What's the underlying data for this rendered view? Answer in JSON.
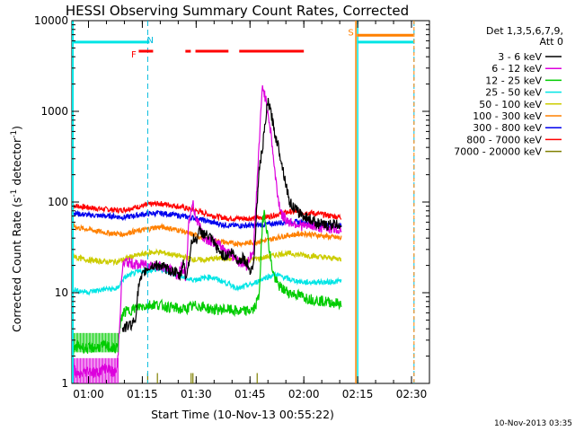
{
  "chart_data": {
    "type": "line",
    "title": "HESSI Observing Summary Count Rates, Corrected",
    "xlabel": "Start Time (10-Nov-13 00:55:22)",
    "ylabel_main": "Corrected Count Rate (s",
    "ylabel_sup1": "-1",
    "ylabel_mid": " detector",
    "ylabel_sup2": "-1",
    "ylabel_end": ")",
    "y_scale": "log",
    "ylim": [
      1,
      10000
    ],
    "xlim_minutes": [
      55.37,
      155.0
    ],
    "x_ticks": [
      {
        "m": 60,
        "label": "01:00"
      },
      {
        "m": 75,
        "label": "01:15"
      },
      {
        "m": 90,
        "label": "01:30"
      },
      {
        "m": 105,
        "label": "01:45"
      },
      {
        "m": 120,
        "label": "02:00"
      },
      {
        "m": 135,
        "label": "02:15"
      },
      {
        "m": 150,
        "label": "02:30"
      }
    ],
    "y_ticks": [
      {
        "v": 1,
        "label": "1"
      },
      {
        "v": 10,
        "label": "10"
      },
      {
        "v": 100,
        "label": "100"
      },
      {
        "v": 1000,
        "label": "1000"
      },
      {
        "v": 10000,
        "label": "10000"
      }
    ],
    "legend_header": [
      "Det 1,3,5,6,7,9,",
      "Att 0"
    ],
    "legend_placement": "right",
    "series": [
      {
        "name": "3 - 6 keV",
        "color": "#000000",
        "x": [
          69.5,
          70.5,
          72,
          73,
          74,
          75,
          76,
          78,
          80,
          82,
          84,
          85.5,
          86,
          86.5,
          87,
          88,
          88.5,
          89,
          90,
          91,
          92,
          94,
          96,
          98,
          100,
          102,
          103,
          105,
          106,
          107.5,
          108.5,
          110,
          111,
          112,
          113,
          114,
          115,
          116,
          118,
          120,
          122,
          124,
          126,
          128,
          129.5,
          130.5
        ],
        "y": [
          4,
          4.2,
          4.5,
          5,
          12,
          15,
          18,
          20,
          20,
          18,
          17,
          15,
          18,
          24,
          14,
          22,
          30,
          40,
          38,
          48,
          45,
          40,
          30,
          25,
          28,
          22,
          25,
          18,
          20,
          220,
          400,
          1300,
          900,
          550,
          400,
          250,
          160,
          100,
          80,
          70,
          64,
          58,
          55,
          57,
          56,
          58
        ]
      },
      {
        "name": "6 - 12 keV",
        "color": "#dd00dd",
        "x": [
          55.8,
          57,
          60,
          62,
          65,
          67,
          68,
          69.5,
          70.5,
          72,
          74,
          76,
          78,
          80,
          82,
          84,
          85,
          86,
          87,
          88,
          89,
          90,
          91,
          92,
          94,
          96,
          98,
          100,
          102,
          104,
          106,
          107.5,
          108.5,
          110,
          111,
          112,
          113,
          114,
          115,
          116,
          118,
          120,
          122,
          124,
          126,
          128,
          130.5
        ],
        "y": [
          1.5,
          1.2,
          1.4,
          1.3,
          1.5,
          1.3,
          1.4,
          20,
          22,
          21,
          20,
          21,
          20,
          20,
          18,
          17,
          15,
          20,
          14,
          60,
          100,
          65,
          55,
          40,
          38,
          34,
          30,
          26,
          22,
          20,
          30,
          400,
          2000,
          1000,
          500,
          200,
          100,
          70,
          65,
          60,
          58,
          54,
          55,
          53,
          52,
          51,
          50
        ]
      },
      {
        "name": "12 - 25 keV",
        "color": "#00cc00",
        "x": [
          55.8,
          57,
          60,
          62,
          65,
          67,
          68,
          69.5,
          70.5,
          72,
          74,
          76,
          78,
          80,
          82,
          84,
          86,
          88,
          90,
          92,
          94,
          96,
          98,
          100,
          102,
          104,
          106,
          107.5,
          108.5,
          109,
          110,
          111,
          112,
          113,
          114,
          116,
          118,
          120,
          122,
          124,
          126,
          128,
          130.5
        ],
        "y": [
          2.3,
          2.6,
          2.4,
          2.5,
          2.6,
          2.4,
          2.5,
          6,
          6.2,
          6.5,
          7,
          7.2,
          7.5,
          7.3,
          7,
          6.8,
          6.5,
          6.8,
          7.2,
          7,
          6.6,
          6.5,
          6.6,
          6.4,
          6.2,
          6.3,
          6.5,
          9,
          60,
          80,
          40,
          20,
          14,
          12,
          11,
          10,
          9.5,
          9,
          8.5,
          8.2,
          8,
          7.8,
          7.5
        ]
      },
      {
        "name": "25 - 50 keV",
        "color": "#00e5e5",
        "x": [
          55.8,
          57,
          60,
          62,
          65,
          67,
          68,
          69.5,
          70.5,
          72,
          74,
          76,
          78,
          80,
          82,
          84,
          86,
          88,
          90,
          92,
          94,
          96,
          98,
          100,
          102,
          104,
          106,
          108,
          110,
          112,
          114,
          116,
          118,
          120,
          122,
          124,
          126,
          128,
          130.5
        ],
        "y": [
          11,
          10.5,
          10.2,
          10.5,
          11,
          11,
          11,
          14,
          15,
          16,
          17,
          17.5,
          18,
          18,
          17,
          16,
          15,
          14,
          14,
          14.5,
          15,
          14,
          13,
          12,
          11,
          12,
          12.5,
          14,
          15,
          16,
          15,
          14,
          13.5,
          13,
          13,
          13.2,
          13,
          13.2,
          13.5
        ]
      },
      {
        "name": "50 - 100 keV",
        "color": "#cccc00",
        "x": [
          55.8,
          57,
          60,
          62,
          65,
          67,
          68,
          69.5,
          70.5,
          72,
          74,
          76,
          78,
          80,
          82,
          84,
          86,
          88,
          90,
          92,
          94,
          96,
          98,
          100,
          102,
          104,
          106,
          108,
          110,
          112,
          114,
          116,
          118,
          120,
          122,
          124,
          126,
          128,
          130.5
        ],
        "y": [
          26,
          24,
          23,
          22.5,
          22,
          22,
          22,
          23,
          24,
          25,
          26,
          27,
          28,
          28,
          27,
          26,
          25,
          24,
          23,
          23,
          23.5,
          24,
          24,
          23.5,
          23,
          23,
          23.5,
          24,
          25,
          26,
          27,
          27,
          26.5,
          26,
          25.5,
          25,
          24.5,
          24,
          23.5
        ]
      },
      {
        "name": "100 - 300 keV",
        "color": "#ff8000",
        "x": [
          55.8,
          57,
          60,
          62,
          65,
          67,
          68,
          69.5,
          70.5,
          72,
          74,
          76,
          78,
          80,
          82,
          84,
          86,
          88,
          90,
          92,
          94,
          96,
          98,
          100,
          102,
          104,
          106,
          108,
          110,
          112,
          114,
          116,
          118,
          120,
          122,
          124,
          126,
          128,
          130.5
        ],
        "y": [
          55,
          52,
          50,
          48,
          46,
          45,
          45,
          44,
          45,
          47,
          48,
          50,
          52,
          53,
          52,
          50,
          48,
          45,
          43,
          40,
          38,
          37,
          36,
          35,
          35,
          35,
          36,
          37,
          38,
          40,
          42,
          43,
          44,
          45,
          44,
          43,
          42,
          41,
          40
        ]
      },
      {
        "name": "300 - 800 keV",
        "color": "#0000ee",
        "x": [
          55.8,
          57,
          60,
          62,
          65,
          67,
          68,
          69.5,
          70.5,
          72,
          74,
          76,
          78,
          80,
          82,
          84,
          86,
          88,
          90,
          92,
          94,
          96,
          98,
          100,
          102,
          104,
          106,
          108,
          110,
          112,
          114,
          116,
          118,
          120,
          122,
          124,
          126,
          128,
          130.5
        ],
        "y": [
          76,
          74,
          72,
          71,
          70,
          70,
          69,
          68,
          68,
          70,
          72,
          74,
          75,
          75,
          74,
          72,
          70,
          68,
          66,
          63,
          60,
          58,
          56,
          55,
          55,
          55,
          55,
          56,
          57,
          58,
          60,
          61,
          60,
          59,
          58,
          57,
          56,
          55,
          54
        ]
      },
      {
        "name": "800 - 7000 keV",
        "color": "#ff0000",
        "x": [
          55.8,
          57,
          60,
          62,
          65,
          67,
          68,
          69.5,
          70.5,
          72,
          74,
          76,
          78,
          80,
          82,
          84,
          86,
          88,
          90,
          92,
          94,
          96,
          98,
          100,
          102,
          104,
          106,
          108,
          110,
          112,
          114,
          116,
          118,
          120,
          122,
          124,
          126,
          128,
          130.5
        ],
        "y": [
          92,
          90,
          87,
          85,
          83,
          82,
          81,
          82,
          83,
          86,
          89,
          92,
          95,
          96,
          94,
          91,
          88,
          84,
          80,
          76,
          72,
          69,
          67,
          66,
          66,
          66,
          66,
          67,
          69,
          72,
          75,
          78,
          78,
          77,
          76,
          74,
          72,
          70,
          68
        ]
      },
      {
        "name": "7000 - 20000 keV",
        "color": "#808000",
        "x": [],
        "y": [],
        "spikes": [
          76.5,
          79.2,
          88.6,
          89.1,
          107.0
        ]
      }
    ],
    "legend_line_colors": [
      "#000000",
      "#dd00dd",
      "#00cc00",
      "#00e5e5",
      "#cccc00",
      "#ff8000",
      "#0000ee",
      "#ff0000",
      "#808000"
    ],
    "annotations": [
      {
        "label": "N",
        "m": 77.2,
        "color": "#00bbdd"
      },
      {
        "label": "F",
        "m": 72.6,
        "color": "#ff0000"
      },
      {
        "label": "S",
        "m": 133.1,
        "color": "#ff8000"
      }
    ],
    "flare_bars_minutes": [
      [
        74,
        78
      ],
      [
        87,
        88.5
      ],
      [
        89.8,
        99
      ],
      [
        102,
        120
      ]
    ],
    "night_lines_minutes": [
      76.5,
      150.7
    ],
    "saa_lines_minutes": [
      134.5,
      135
    ]
  },
  "footer_timestamp": "10-Nov-2013 03:35"
}
